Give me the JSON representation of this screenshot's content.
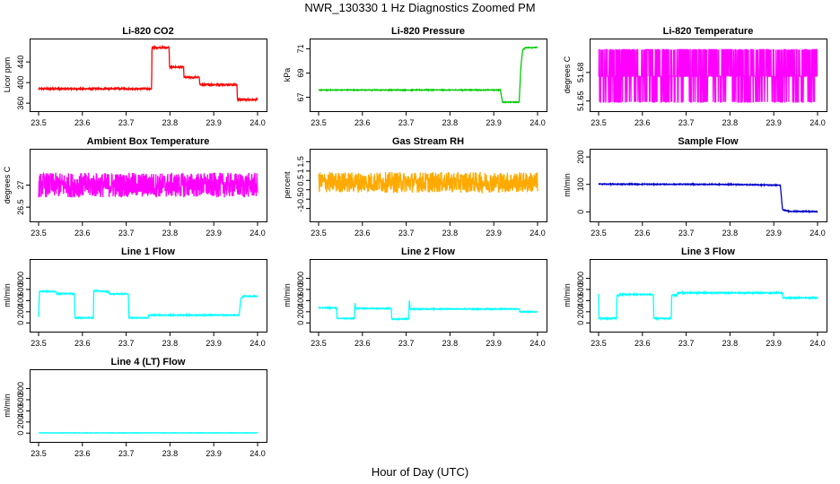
{
  "page": {
    "title": "NWR_130330  1 Hz Diagnostics Zoomed PM",
    "xlabel": "Hour of Day (UTC)"
  },
  "chart_data": [
    {
      "type": "line",
      "title": "Li-820 CO2",
      "ylabel": "Licor ppm",
      "color": "#ff0000",
      "xlim": [
        23.5,
        24.0
      ],
      "xticks": [
        23.5,
        23.6,
        23.7,
        23.8,
        23.9,
        24.0
      ],
      "ylim": [
        355,
        475
      ],
      "yticks": [
        360,
        400,
        440
      ],
      "series": [
        {
          "noise": 1.5,
          "points": [
            [
              23.5,
              388
            ],
            [
              23.758,
              388
            ],
            [
              23.759,
              468
            ],
            [
              23.798,
              468
            ],
            [
              23.799,
              430
            ],
            [
              23.831,
              430
            ],
            [
              23.832,
              410
            ],
            [
              23.867,
              410
            ],
            [
              23.868,
              396
            ],
            [
              23.953,
              396
            ],
            [
              23.954,
              367
            ],
            [
              24.0,
              367
            ]
          ]
        }
      ]
    },
    {
      "type": "line",
      "title": "Li-820 Pressure",
      "ylabel": "kPa",
      "color": "#00cc00",
      "xlim": [
        23.5,
        24.0
      ],
      "xticks": [
        23.5,
        23.6,
        23.7,
        23.8,
        23.9,
        24.0
      ],
      "ylim": [
        66.3,
        71.4
      ],
      "yticks": [
        67,
        69,
        71
      ],
      "series": [
        {
          "noise": 0.03,
          "points": [
            [
              23.5,
              67.6
            ],
            [
              23.915,
              67.6
            ],
            [
              23.92,
              66.6
            ],
            [
              23.958,
              66.6
            ],
            [
              23.962,
              69.6
            ],
            [
              23.966,
              70.9
            ],
            [
              23.972,
              71.1
            ],
            [
              24.0,
              71.1
            ]
          ]
        }
      ]
    },
    {
      "type": "line",
      "title": "Li-820 Temperature",
      "ylabel": "degrees C",
      "color": "#ff00ff",
      "xlim": [
        23.5,
        24.0
      ],
      "xticks": [
        23.5,
        23.6,
        23.7,
        23.8,
        23.9,
        24.0
      ],
      "ylim": [
        51.645,
        51.71
      ],
      "yticks": [
        51.65,
        51.68
      ],
      "series": [
        {
          "pattern": "levels",
          "levels": [
            51.649,
            51.676,
            51.704
          ],
          "points": [
            [
              23.5,
              51.676
            ],
            [
              24.0,
              51.676
            ]
          ]
        }
      ]
    },
    {
      "type": "line",
      "title": "Ambient Box Temperature",
      "ylabel": "degrees C",
      "color": "#ff00ff",
      "xlim": [
        23.5,
        24.0
      ],
      "xticks": [
        23.5,
        23.6,
        23.7,
        23.8,
        23.9,
        24.0
      ],
      "ylim": [
        26.3,
        27.7
      ],
      "yticks": [
        26.5,
        27.0
      ],
      "series": [
        {
          "noise": 0.28,
          "points": [
            [
              23.5,
              27.0
            ],
            [
              24.0,
              27.0
            ]
          ]
        }
      ]
    },
    {
      "type": "line",
      "title": "Gas Stream RH",
      "ylabel": "percent",
      "color": "#ffaa00",
      "xlim": [
        23.5,
        24.0
      ],
      "xticks": [
        23.5,
        23.6,
        23.7,
        23.8,
        23.9,
        24.0
      ],
      "ylim": [
        -1.4,
        1.9
      ],
      "yticks": [
        -1.0,
        -0.5,
        0.0,
        0.5,
        1.0,
        1.5
      ],
      "series": [
        {
          "noise": 0.55,
          "points": [
            [
              23.5,
              0.4
            ],
            [
              24.0,
              0.4
            ]
          ]
        }
      ]
    },
    {
      "type": "line",
      "title": "Sample Flow",
      "ylabel": "ml/min",
      "color": "#0000cc",
      "xlim": [
        23.5,
        24.0
      ],
      "xticks": [
        23.5,
        23.6,
        23.7,
        23.8,
        23.9,
        24.0
      ],
      "ylim": [
        -15,
        210
      ],
      "yticks": [
        0,
        100,
        200
      ],
      "series": [
        {
          "noise": 1.5,
          "points": [
            [
              23.5,
              101
            ],
            [
              23.8,
              100
            ],
            [
              23.915,
              97
            ],
            [
              23.92,
              8
            ],
            [
              23.935,
              2
            ],
            [
              24.0,
              1
            ]
          ]
        }
      ]
    },
    {
      "type": "line",
      "title": "Line 1 Flow",
      "ylabel": "ml/min",
      "color": "#00ffff",
      "xlim": [
        23.5,
        24.0
      ],
      "xticks": [
        23.5,
        23.6,
        23.7,
        23.8,
        23.9,
        24.0
      ],
      "ylim": [
        -60,
        1050
      ],
      "yticks": [
        0,
        200,
        400,
        600,
        800
      ],
      "series": [
        {
          "noise": 8,
          "points": [
            [
              23.5,
              100
            ],
            [
              23.502,
              570
            ],
            [
              23.54,
              560
            ],
            [
              23.541,
              525
            ],
            [
              23.582,
              525
            ],
            [
              23.583,
              90
            ],
            [
              23.625,
              90
            ],
            [
              23.626,
              580
            ],
            [
              23.66,
              560
            ],
            [
              23.661,
              520
            ],
            [
              23.705,
              520
            ],
            [
              23.706,
              90
            ],
            [
              23.75,
              90
            ],
            [
              23.751,
              140
            ],
            [
              23.958,
              140
            ],
            [
              23.962,
              440
            ],
            [
              23.968,
              480
            ],
            [
              24.0,
              480
            ]
          ]
        }
      ]
    },
    {
      "type": "line",
      "title": "Line 2 Flow",
      "ylabel": "ml/min",
      "color": "#00ffff",
      "xlim": [
        23.5,
        24.0
      ],
      "xticks": [
        23.5,
        23.6,
        23.7,
        23.8,
        23.9,
        24.0
      ],
      "ylim": [
        -60,
        1050
      ],
      "yticks": [
        0,
        200,
        400,
        600,
        800
      ],
      "series": [
        {
          "noise": 8,
          "points": [
            [
              23.5,
              270
            ],
            [
              23.541,
              270
            ],
            [
              23.542,
              80
            ],
            [
              23.582,
              80
            ],
            [
              23.583,
              370
            ],
            [
              23.585,
              260
            ],
            [
              23.666,
              260
            ],
            [
              23.667,
              70
            ],
            [
              23.706,
              70
            ],
            [
              23.707,
              430
            ],
            [
              23.709,
              250
            ],
            [
              23.958,
              250
            ],
            [
              23.959,
              200
            ],
            [
              24.0,
              200
            ]
          ]
        }
      ]
    },
    {
      "type": "line",
      "title": "Line 3 Flow",
      "ylabel": "ml/min",
      "color": "#00ffff",
      "xlim": [
        23.5,
        24.0
      ],
      "xticks": [
        23.5,
        23.6,
        23.7,
        23.8,
        23.9,
        24.0
      ],
      "ylim": [
        -60,
        1050
      ],
      "yticks": [
        0,
        200,
        400,
        600,
        800
      ],
      "series": [
        {
          "noise": 10,
          "points": [
            [
              23.5,
              520
            ],
            [
              23.501,
              80
            ],
            [
              23.541,
              80
            ],
            [
              23.542,
              500
            ],
            [
              23.547,
              480
            ],
            [
              23.548,
              510
            ],
            [
              23.625,
              510
            ],
            [
              23.626,
              80
            ],
            [
              23.666,
              80
            ],
            [
              23.667,
              500
            ],
            [
              23.679,
              490
            ],
            [
              23.68,
              540
            ],
            [
              23.92,
              540
            ],
            [
              23.921,
              450
            ],
            [
              24.0,
              450
            ]
          ]
        }
      ]
    },
    {
      "type": "line",
      "title": "Line 4 (LT) Flow",
      "ylabel": "ml/min",
      "color": "#00ffff",
      "xlim": [
        23.5,
        24.0
      ],
      "xticks": [
        23.5,
        23.6,
        23.7,
        23.8,
        23.9,
        24.0
      ],
      "ylim": [
        -60,
        1050
      ],
      "yticks": [
        0,
        200,
        400,
        600,
        800
      ],
      "series": [
        {
          "noise": 3,
          "points": [
            [
              23.5,
              5
            ],
            [
              24.0,
              5
            ]
          ]
        }
      ]
    }
  ]
}
